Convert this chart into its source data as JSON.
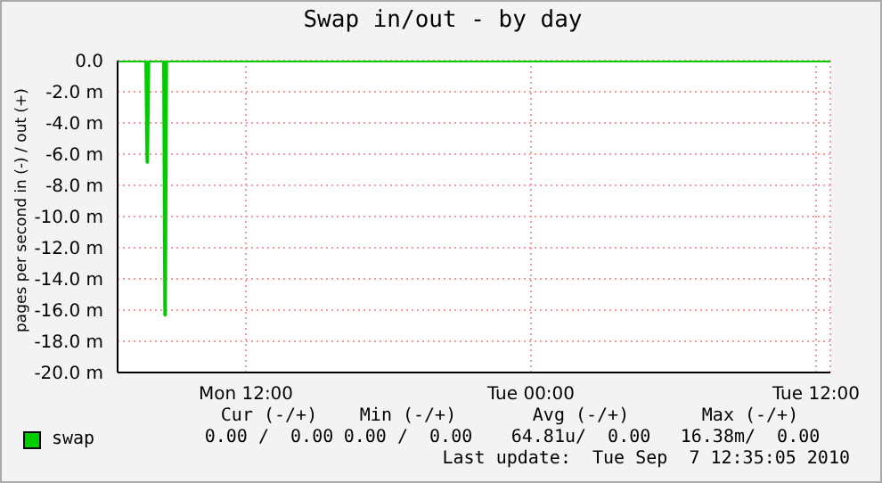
{
  "chart_data": {
    "type": "line",
    "title": "Swap in/out - by day",
    "ylabel": "pages per second in (-) / out (+)",
    "series": [
      {
        "name": "swap",
        "color": "#00cc00",
        "x": [
          "2010-09-06T06:36",
          "2010-09-06T07:48",
          "2010-09-06T07:51",
          "2010-09-06T07:54",
          "2010-09-06T08:33",
          "2010-09-06T08:36",
          "2010-09-06T08:39",
          "2010-09-07T12:36"
        ],
        "values": [
          0,
          0,
          -6.5,
          0,
          0,
          -16.3,
          0,
          0
        ]
      }
    ],
    "xlim": [
      "2010-09-06T06:36",
      "2010-09-07T12:36"
    ],
    "xticks": [
      {
        "value": "2010-09-06T12:00",
        "label": "Mon 12:00"
      },
      {
        "value": "2010-09-07T00:00",
        "label": "Tue 00:00"
      },
      {
        "value": "2010-09-07T12:00",
        "label": "Tue 12:00"
      }
    ],
    "ylim": [
      -20,
      0
    ],
    "yticks": [
      {
        "value": -20,
        "label": "-20.0 m"
      },
      {
        "value": -18,
        "label": "-18.0 m"
      },
      {
        "value": -16,
        "label": "-16.0 m"
      },
      {
        "value": -14,
        "label": "-14.0 m"
      },
      {
        "value": -12,
        "label": "-12.0 m"
      },
      {
        "value": -10,
        "label": "-10.0 m"
      },
      {
        "value": -8,
        "label": "-8.0 m"
      },
      {
        "value": -6,
        "label": "-6.0 m"
      },
      {
        "value": -4,
        "label": "-4.0 m"
      },
      {
        "value": -2,
        "label": "-2.0 m"
      },
      {
        "value": 0,
        "label": "0.0"
      }
    ],
    "grid": true,
    "legend": "bottom left",
    "marker": "none",
    "line_style": "solid",
    "annotations": [
      "Cur (-/+)",
      "Min (-/+)",
      "Avg (-/+)",
      "Max (-/+)",
      "0.00 /  0.00",
      "0.00 /  0.00",
      "64.81u/  0.00",
      "16.38m/  0.00",
      "Last update:  Tue Sep  7 12:35:05 2010"
    ]
  }
}
